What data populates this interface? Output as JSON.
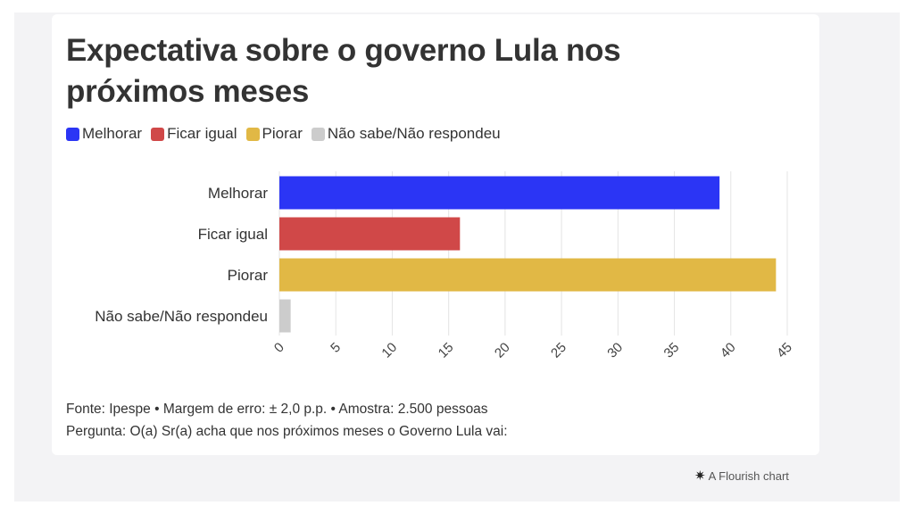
{
  "chart_data": {
    "type": "bar",
    "orientation": "horizontal",
    "title": "Expectativa sobre o governo Lula nos próximos meses",
    "categories": [
      "Melhorar",
      "Ficar igual",
      "Piorar",
      "Não sabe/Não respondeu"
    ],
    "values": [
      39,
      16,
      44,
      1
    ],
    "colors": [
      "#2b35f5",
      "#d04848",
      "#e1b845",
      "#cccccc"
    ],
    "legend": [
      {
        "label": "Melhorar",
        "color": "#2b35f5"
      },
      {
        "label": "Ficar igual",
        "color": "#d04848"
      },
      {
        "label": "Piorar",
        "color": "#e1b845"
      },
      {
        "label": "Não sabe/Não respondeu",
        "color": "#cccccc"
      }
    ],
    "legend_position": "top-left",
    "xlim": [
      0,
      45
    ],
    "xticks": [
      "0",
      "5",
      "10",
      "15",
      "20",
      "25",
      "30",
      "35",
      "40",
      "45"
    ],
    "grid": true,
    "xlabel": "",
    "ylabel": ""
  },
  "footer": {
    "source": "Fonte: Ipespe • Margem de erro: ± 2,0 p.p. • Amostra: 2.500 pessoas",
    "question": "Pergunta: O(a) Sr(a) acha que nos próximos meses o Governo Lula vai:"
  },
  "credit": {
    "icon": "flourish-logo-icon",
    "text": "A Flourish chart"
  }
}
